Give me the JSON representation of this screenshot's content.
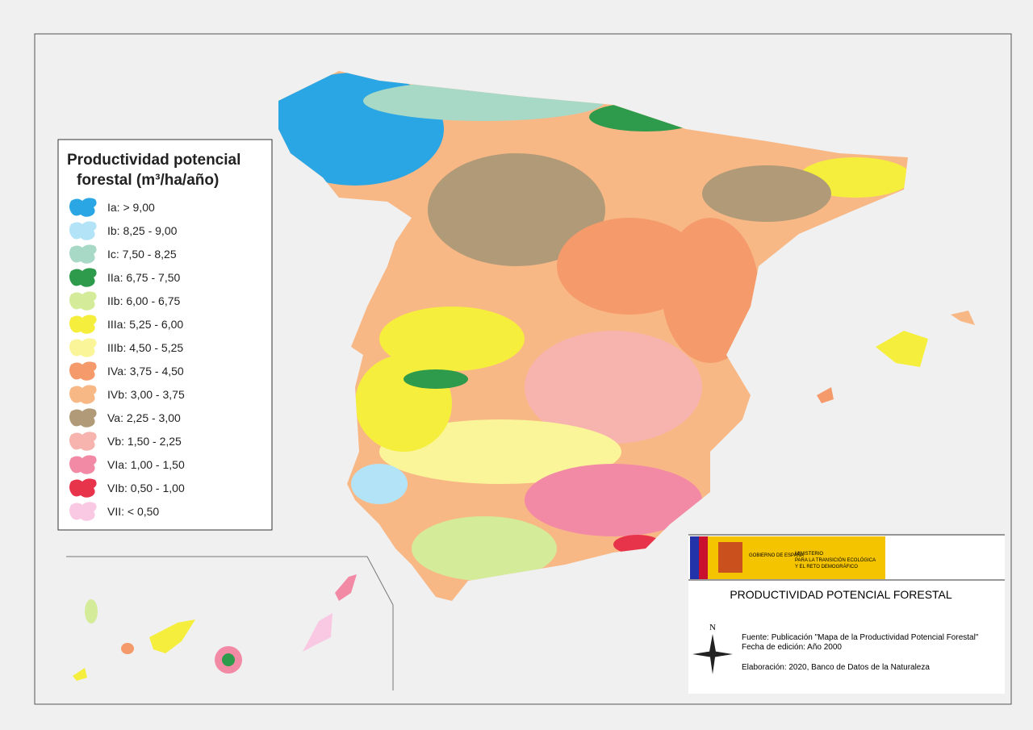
{
  "legend": {
    "title_lines": [
      "Productividad potencial",
      "forestal (m³/ha/año)"
    ],
    "items": [
      {
        "label": "Ia: > 9,00",
        "color": "#2aa6e4"
      },
      {
        "label": "Ib: 8,25 - 9,00",
        "color": "#b3e3f7"
      },
      {
        "label": "Ic: 7,50 - 8,25",
        "color": "#a8d8c6"
      },
      {
        "label": "IIa: 6,75 - 7,50",
        "color": "#2e9a4b"
      },
      {
        "label": "IIb: 6,00 - 6,75",
        "color": "#d4ec9a"
      },
      {
        "label": "IIIa: 5,25 - 6,00",
        "color": "#f5ee3c"
      },
      {
        "label": "IIIb: 4,50 - 5,25",
        "color": "#fbf59a"
      },
      {
        "label": "IVa: 3,75 - 4,50",
        "color": "#f59a6a"
      },
      {
        "label": "IVb: 3,00 - 3,75",
        "color": "#f8b886"
      },
      {
        "label": "Va: 2,25 - 3,00",
        "color": "#b09a78"
      },
      {
        "label": "Vb: 1,50 - 2,25",
        "color": "#f7b3ae"
      },
      {
        "label": "VIa: 1,00 - 1,50",
        "color": "#f28aa6"
      },
      {
        "label": "VIb: 0,50 - 1,00",
        "color": "#e8344a"
      },
      {
        "label": "VII: < 0,50",
        "color": "#f9c8e2"
      }
    ]
  },
  "info": {
    "government": "GOBIERNO DE ESPAÑA",
    "ministry": [
      "MINISTERIO",
      "PARA LA TRANSICIÓN ECOLÓGICA",
      "Y EL RETO DEMOGRÁFICO"
    ],
    "title": "PRODUCTIVIDAD POTENCIAL FORESTAL",
    "north": "N",
    "source": "Fuente: Publicación \"Mapa de la Productividad Potencial Forestal\"",
    "date": "Fecha de edición: Año 2000",
    "credit": "Elaboración: 2020, Banco de Datos de la Naturaleza"
  }
}
